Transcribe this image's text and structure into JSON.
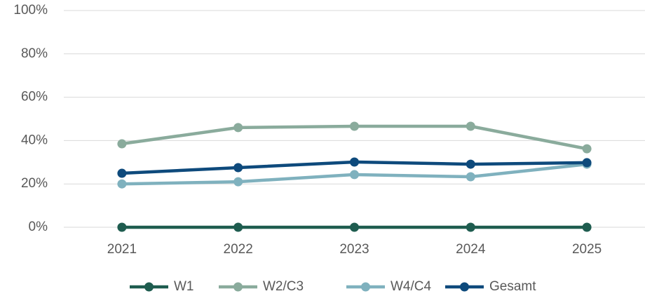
{
  "chart_data": {
    "type": "line",
    "categories": [
      "2021",
      "2022",
      "2023",
      "2024",
      "2025"
    ],
    "series": [
      {
        "name": "W1",
        "color": "#1e5c4f",
        "values": [
          0,
          0,
          0,
          0,
          0
        ]
      },
      {
        "name": "W2/C3",
        "color": "#8aab9c",
        "values": [
          38.5,
          46,
          46.6,
          46.6,
          36.2
        ]
      },
      {
        "name": "W4/C4",
        "color": "#7fb1be",
        "values": [
          20,
          21,
          24.3,
          23.3,
          29.1
        ]
      },
      {
        "name": "Gesamt",
        "color": "#0e4a7c",
        "values": [
          24.9,
          27.5,
          30.1,
          29.1,
          29.8
        ]
      }
    ],
    "ylim": [
      0,
      100
    ],
    "yticks": [
      {
        "value": 0,
        "label": "0%"
      },
      {
        "value": 20,
        "label": "20%"
      },
      {
        "value": 40,
        "label": "40%"
      },
      {
        "value": 60,
        "label": "60%"
      },
      {
        "value": 80,
        "label": "80%"
      },
      {
        "value": 100,
        "label": "100%"
      }
    ],
    "grid": true,
    "legend": "bottom"
  }
}
